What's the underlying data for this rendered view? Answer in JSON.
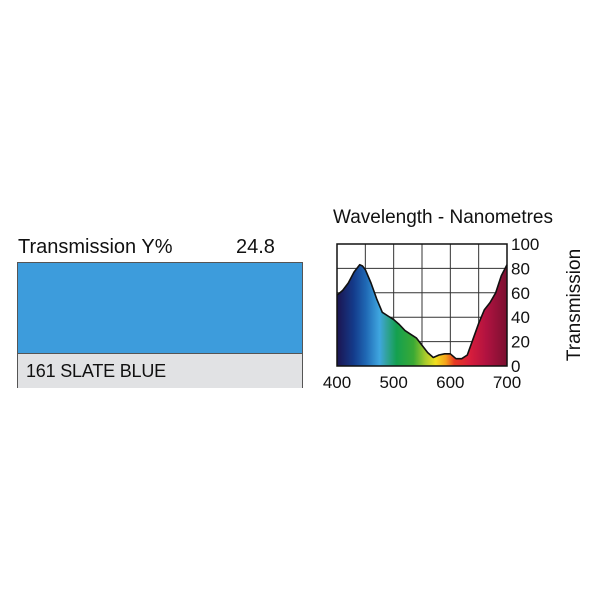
{
  "filter": {
    "transmission_label": "Transmission Y%",
    "transmission_value": "24.8",
    "name": "161 SLATE BLUE",
    "swatch_color": "#3d9cdc"
  },
  "chart_data": {
    "type": "area",
    "title": "Wavelength - Nanometres",
    "xlabel": "",
    "ylabel": "Transmission",
    "xlim": [
      400,
      700
    ],
    "ylim": [
      0,
      100
    ],
    "xticks": [
      400,
      500,
      600,
      700
    ],
    "yticks": [
      0,
      20,
      40,
      60,
      80,
      100
    ],
    "x_grid": [
      400,
      450,
      500,
      550,
      600,
      650,
      700
    ],
    "y_grid": [
      0,
      20,
      40,
      60,
      80,
      100
    ],
    "grid": true,
    "fill": "visible-spectrum gradient",
    "x": [
      400,
      410,
      420,
      430,
      440,
      445,
      450,
      460,
      470,
      480,
      490,
      500,
      510,
      520,
      530,
      540,
      550,
      560,
      570,
      580,
      590,
      600,
      610,
      620,
      630,
      640,
      650,
      660,
      670,
      680,
      690,
      700
    ],
    "values": [
      58,
      62,
      68,
      77,
      83,
      82,
      79,
      68,
      55,
      44,
      41,
      38,
      34,
      29,
      26,
      23,
      17,
      11,
      7,
      9,
      10,
      10,
      6,
      6,
      9,
      22,
      35,
      46,
      52,
      60,
      74,
      83
    ]
  }
}
